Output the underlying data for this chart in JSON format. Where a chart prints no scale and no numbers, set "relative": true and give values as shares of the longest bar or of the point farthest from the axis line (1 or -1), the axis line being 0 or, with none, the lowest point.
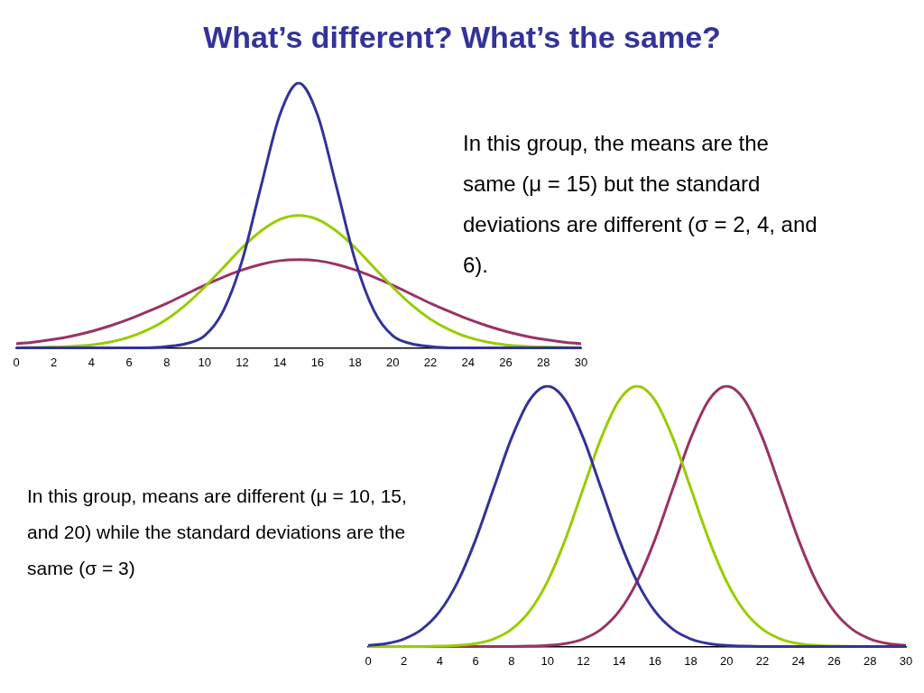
{
  "chart_data": [
    {
      "type": "line",
      "title": "What’s different? What’s the same?",
      "relative": true,
      "grid": false,
      "legend": false,
      "marker": "none",
      "line_style": "solid",
      "tick_labels": "x",
      "x": [
        0,
        1,
        2,
        3,
        4,
        5,
        6,
        7,
        8,
        9,
        10,
        11,
        12,
        13,
        14,
        15,
        16,
        17,
        18,
        19,
        20,
        21,
        22,
        23,
        24,
        25,
        26,
        27,
        28,
        29,
        30
      ],
      "xlim": [
        0,
        30
      ],
      "xticks": [
        0,
        2,
        4,
        6,
        8,
        10,
        12,
        14,
        16,
        18,
        20,
        22,
        24,
        26,
        28,
        30
      ],
      "annotations": [
        "In this group, the means are the same (μ = 15) but the standard deviations are different (σ = 2, 4, and 6)."
      ],
      "series": [
        {
          "color": "#333399",
          "values": [
            0,
            0,
            0,
            0,
            0,
            0,
            0,
            0,
            0.005,
            0.015,
            0.045,
            0.14,
            0.33,
            0.61,
            0.88,
            1,
            0.88,
            0.61,
            0.33,
            0.14,
            0.045,
            0.015,
            0.005,
            0,
            0,
            0,
            0,
            0,
            0,
            0,
            0
          ]
        },
        {
          "color": "#99cc00",
          "values": [
            0,
            0.001,
            0.003,
            0.006,
            0.011,
            0.022,
            0.04,
            0.068,
            0.108,
            0.162,
            0.229,
            0.303,
            0.378,
            0.441,
            0.485,
            0.5,
            0.485,
            0.441,
            0.378,
            0.303,
            0.229,
            0.162,
            0.108,
            0.068,
            0.04,
            0.022,
            0.011,
            0.006,
            0.003,
            0.001,
            0
          ]
        },
        {
          "color": "#993366",
          "values": [
            0.015,
            0.022,
            0.032,
            0.045,
            0.062,
            0.083,
            0.108,
            0.137,
            0.168,
            0.202,
            0.236,
            0.267,
            0.294,
            0.315,
            0.329,
            0.333,
            0.329,
            0.315,
            0.294,
            0.267,
            0.236,
            0.202,
            0.168,
            0.137,
            0.108,
            0.083,
            0.062,
            0.045,
            0.032,
            0.022,
            0.015
          ]
        }
      ]
    },
    {
      "type": "line",
      "relative": true,
      "grid": false,
      "legend": false,
      "marker": "none",
      "line_style": "solid",
      "tick_labels": "x",
      "x": [
        0,
        1,
        2,
        3,
        4,
        5,
        6,
        7,
        8,
        9,
        10,
        11,
        12,
        13,
        14,
        15,
        16,
        17,
        18,
        19,
        20,
        21,
        22,
        23,
        24,
        25,
        26,
        27,
        28,
        29,
        30
      ],
      "xlim": [
        0,
        30
      ],
      "xticks": [
        0,
        2,
        4,
        6,
        8,
        10,
        12,
        14,
        16,
        18,
        20,
        22,
        24,
        26,
        28,
        30
      ],
      "annotations": [
        "In this group, means are different (μ = 10, 15, and 20) while the standard deviations are the same (σ = 3)"
      ],
      "series": [
        {
          "color": "#333399",
          "values": [
            0.004,
            0.011,
            0.029,
            0.066,
            0.135,
            0.249,
            0.411,
            0.607,
            0.801,
            0.946,
            1,
            0.946,
            0.801,
            0.607,
            0.411,
            0.249,
            0.135,
            0.066,
            0.029,
            0.011,
            0.004,
            0.001,
            0,
            0,
            0,
            0,
            0,
            0,
            0,
            0,
            0
          ]
        },
        {
          "color": "#99cc00",
          "values": [
            0,
            0,
            0,
            0,
            0.001,
            0.004,
            0.011,
            0.029,
            0.066,
            0.135,
            0.249,
            0.411,
            0.607,
            0.801,
            0.946,
            1,
            0.946,
            0.801,
            0.607,
            0.411,
            0.249,
            0.135,
            0.066,
            0.029,
            0.011,
            0.004,
            0.001,
            0,
            null,
            null,
            null
          ]
        },
        {
          "color": "#993366",
          "values": [
            null,
            null,
            null,
            0,
            0,
            0,
            0,
            0,
            0,
            0.001,
            0.004,
            0.011,
            0.029,
            0.066,
            0.135,
            0.249,
            0.411,
            0.607,
            0.801,
            0.946,
            1,
            0.946,
            0.801,
            0.607,
            0.411,
            0.249,
            0.135,
            0.066,
            0.029,
            0.011,
            0.004
          ]
        }
      ]
    }
  ]
}
